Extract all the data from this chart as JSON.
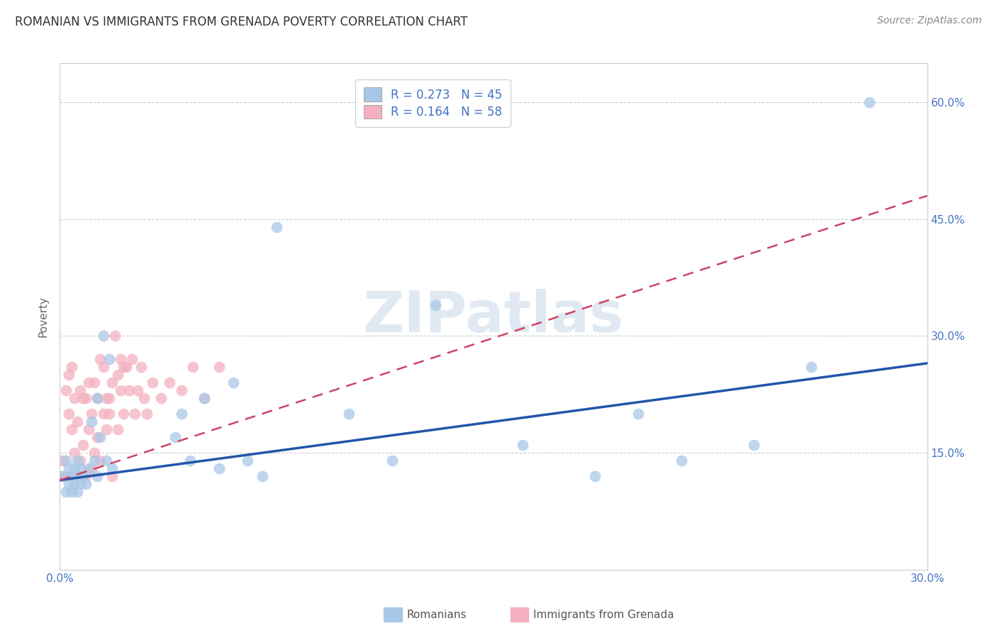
{
  "title": "ROMANIAN VS IMMIGRANTS FROM GRENADA POVERTY CORRELATION CHART",
  "source": "Source: ZipAtlas.com",
  "ylabel": "Poverty",
  "xlim": [
    0.0,
    0.3
  ],
  "ylim": [
    0.0,
    0.65
  ],
  "xticks": [
    0.0,
    0.05,
    0.1,
    0.15,
    0.2,
    0.25,
    0.3
  ],
  "xtick_labels": [
    "0.0%",
    "",
    "",
    "",
    "",
    "",
    "30.0%"
  ],
  "ytick_right_positions": [
    0.15,
    0.3,
    0.45,
    0.6
  ],
  "ytick_right_labels": [
    "15.0%",
    "30.0%",
    "45.0%",
    "60.0%"
  ],
  "grid_color": "#cccccc",
  "background_color": "#ffffff",
  "series1_label": "Romanians",
  "series1_color": "#a8c8e8",
  "series1_line_color": "#2255aa",
  "series1_R": "0.273",
  "series1_N": "45",
  "series2_label": "Immigrants from Grenada",
  "series2_color": "#f4b0c0",
  "series2_line_color": "#cc4466",
  "series2_R": "0.164",
  "series2_N": "58",
  "watermark_text": "ZIPatlas",
  "title_fontsize": 12,
  "label_fontsize": 11,
  "tick_fontsize": 11,
  "legend_fontsize": 12,
  "romanians_x": [
    0.001,
    0.002,
    0.002,
    0.003,
    0.003,
    0.004,
    0.004,
    0.005,
    0.005,
    0.006,
    0.006,
    0.006,
    0.007,
    0.007,
    0.008,
    0.009,
    0.01,
    0.011,
    0.012,
    0.013,
    0.013,
    0.014,
    0.015,
    0.016,
    0.017,
    0.018,
    0.04,
    0.042,
    0.045,
    0.05,
    0.055,
    0.06,
    0.065,
    0.07,
    0.075,
    0.1,
    0.115,
    0.13,
    0.16,
    0.185,
    0.2,
    0.215,
    0.24,
    0.26,
    0.28
  ],
  "romanians_y": [
    0.12,
    0.1,
    0.14,
    0.11,
    0.13,
    0.12,
    0.1,
    0.13,
    0.11,
    0.12,
    0.1,
    0.14,
    0.11,
    0.13,
    0.12,
    0.11,
    0.13,
    0.19,
    0.14,
    0.12,
    0.22,
    0.17,
    0.3,
    0.14,
    0.27,
    0.13,
    0.17,
    0.2,
    0.14,
    0.22,
    0.13,
    0.24,
    0.14,
    0.12,
    0.44,
    0.2,
    0.14,
    0.34,
    0.16,
    0.12,
    0.2,
    0.14,
    0.16,
    0.26,
    0.6
  ],
  "grenada_x": [
    0.001,
    0.001,
    0.002,
    0.002,
    0.003,
    0.003,
    0.004,
    0.004,
    0.005,
    0.005,
    0.006,
    0.006,
    0.007,
    0.007,
    0.008,
    0.008,
    0.009,
    0.009,
    0.01,
    0.01,
    0.011,
    0.011,
    0.012,
    0.012,
    0.013,
    0.013,
    0.014,
    0.014,
    0.015,
    0.015,
    0.016,
    0.016,
    0.017,
    0.017,
    0.018,
    0.018,
    0.019,
    0.02,
    0.02,
    0.021,
    0.021,
    0.022,
    0.022,
    0.023,
    0.024,
    0.025,
    0.026,
    0.027,
    0.028,
    0.029,
    0.03,
    0.032,
    0.035,
    0.038,
    0.042,
    0.046,
    0.05,
    0.055
  ],
  "grenada_y": [
    0.12,
    0.14,
    0.23,
    0.12,
    0.2,
    0.25,
    0.18,
    0.26,
    0.15,
    0.22,
    0.12,
    0.19,
    0.14,
    0.23,
    0.22,
    0.16,
    0.12,
    0.22,
    0.18,
    0.24,
    0.13,
    0.2,
    0.24,
    0.15,
    0.22,
    0.17,
    0.27,
    0.14,
    0.2,
    0.26,
    0.22,
    0.18,
    0.22,
    0.2,
    0.24,
    0.12,
    0.3,
    0.25,
    0.18,
    0.23,
    0.27,
    0.2,
    0.26,
    0.26,
    0.23,
    0.27,
    0.2,
    0.23,
    0.26,
    0.22,
    0.2,
    0.24,
    0.22,
    0.24,
    0.23,
    0.26,
    0.22,
    0.26
  ],
  "blue_line_x": [
    0.0,
    0.3
  ],
  "blue_line_y": [
    0.115,
    0.265
  ],
  "pink_line_x": [
    0.0,
    0.3
  ],
  "pink_line_y": [
    0.115,
    0.48
  ]
}
